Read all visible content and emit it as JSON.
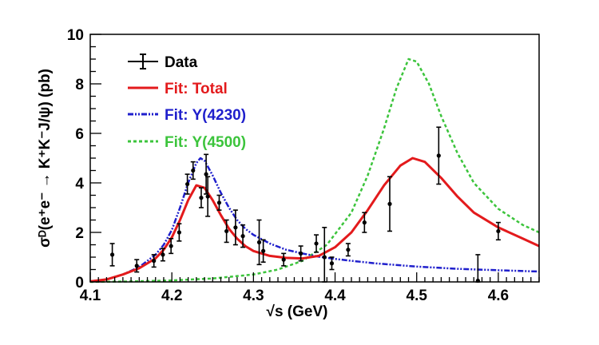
{
  "chart_data": {
    "type": "scatter",
    "title": "",
    "xlabel": "√s (GeV)",
    "ylabel": "σᴰ(e⁺e⁻ → K⁺K⁻J/ψ) (pb)",
    "xlim": [
      4.1,
      4.65
    ],
    "ylim": [
      0,
      10
    ],
    "x_ticks": [
      "4.1",
      "4.2",
      "4.3",
      "4.4",
      "4.5",
      "4.6"
    ],
    "y_ticks": [
      "0",
      "2",
      "4",
      "6",
      "8",
      "10"
    ],
    "grid": false,
    "legend_position": "top-left",
    "legend": [
      {
        "key": "data",
        "label": "Data",
        "color": "#000000"
      },
      {
        "key": "total",
        "label": "Fit: Total",
        "color": "#e31a1c"
      },
      {
        "key": "y4230",
        "label": "Fit: Y(4230)",
        "color": "#1f1fcc"
      },
      {
        "key": "y4500",
        "label": "Fit: Y(4500)",
        "color": "#3cc43c"
      }
    ],
    "data_points": [
      {
        "x": 4.127,
        "y": 1.1,
        "err": 0.45
      },
      {
        "x": 4.157,
        "y": 0.65,
        "err": 0.25
      },
      {
        "x": 4.178,
        "y": 0.85,
        "err": 0.25
      },
      {
        "x": 4.189,
        "y": 1.1,
        "err": 0.25
      },
      {
        "x": 4.199,
        "y": 1.45,
        "err": 0.3
      },
      {
        "x": 4.209,
        "y": 2.0,
        "err": 0.35
      },
      {
        "x": 4.219,
        "y": 3.95,
        "err": 0.4
      },
      {
        "x": 4.226,
        "y": 4.5,
        "err": 0.35
      },
      {
        "x": 4.236,
        "y": 3.4,
        "err": 0.4
      },
      {
        "x": 4.242,
        "y": 4.35,
        "err": 0.8
      },
      {
        "x": 4.244,
        "y": 3.45,
        "err": 0.8
      },
      {
        "x": 4.258,
        "y": 3.2,
        "err": 0.3
      },
      {
        "x": 4.267,
        "y": 2.05,
        "err": 0.45
      },
      {
        "x": 4.278,
        "y": 2.2,
        "err": 0.7
      },
      {
        "x": 4.287,
        "y": 1.85,
        "err": 0.45
      },
      {
        "x": 4.307,
        "y": 1.6,
        "err": 0.9
      },
      {
        "x": 4.312,
        "y": 1.25,
        "err": 0.45
      },
      {
        "x": 4.337,
        "y": 0.9,
        "err": 0.25
      },
      {
        "x": 4.358,
        "y": 1.15,
        "err": 0.3
      },
      {
        "x": 4.377,
        "y": 1.55,
        "err": 0.35
      },
      {
        "x": 4.387,
        "y": 1.0,
        "err": 1.2
      },
      {
        "x": 4.396,
        "y": 0.75,
        "err": 0.25
      },
      {
        "x": 4.416,
        "y": 1.3,
        "err": 0.25
      },
      {
        "x": 4.436,
        "y": 2.4,
        "err": 0.4
      },
      {
        "x": 4.467,
        "y": 3.15,
        "err": 1.1
      },
      {
        "x": 4.527,
        "y": 5.1,
        "err": 1.15
      },
      {
        "x": 4.575,
        "y": 0.05,
        "err": 1.05
      },
      {
        "x": 4.6,
        "y": 2.05,
        "err": 0.35
      }
    ],
    "curves": {
      "total": [
        [
          4.1,
          0.02
        ],
        [
          4.12,
          0.1
        ],
        [
          4.14,
          0.3
        ],
        [
          4.16,
          0.55
        ],
        [
          4.18,
          0.95
        ],
        [
          4.19,
          1.3
        ],
        [
          4.2,
          1.8
        ],
        [
          4.21,
          2.5
        ],
        [
          4.22,
          3.3
        ],
        [
          4.23,
          3.9
        ],
        [
          4.24,
          3.8
        ],
        [
          4.25,
          3.3
        ],
        [
          4.26,
          2.7
        ],
        [
          4.27,
          2.15
        ],
        [
          4.28,
          1.75
        ],
        [
          4.29,
          1.45
        ],
        [
          4.3,
          1.25
        ],
        [
          4.32,
          1.05
        ],
        [
          4.34,
          0.97
        ],
        [
          4.36,
          0.95
        ],
        [
          4.38,
          1.05
        ],
        [
          4.4,
          1.4
        ],
        [
          4.42,
          2.0
        ],
        [
          4.44,
          2.9
        ],
        [
          4.46,
          3.9
        ],
        [
          4.48,
          4.7
        ],
        [
          4.495,
          5.0
        ],
        [
          4.51,
          4.85
        ],
        [
          4.53,
          4.2
        ],
        [
          4.55,
          3.45
        ],
        [
          4.57,
          2.8
        ],
        [
          4.6,
          2.2
        ],
        [
          4.63,
          1.75
        ],
        [
          4.65,
          1.45
        ]
      ],
      "y4230": [
        [
          4.1,
          0.02
        ],
        [
          4.12,
          0.1
        ],
        [
          4.14,
          0.3
        ],
        [
          4.16,
          0.6
        ],
        [
          4.18,
          1.1
        ],
        [
          4.19,
          1.5
        ],
        [
          4.2,
          2.1
        ],
        [
          4.21,
          3.0
        ],
        [
          4.22,
          4.0
        ],
        [
          4.23,
          4.8
        ],
        [
          4.235,
          5.0
        ],
        [
          4.24,
          4.9
        ],
        [
          4.25,
          4.3
        ],
        [
          4.26,
          3.6
        ],
        [
          4.27,
          3.0
        ],
        [
          4.28,
          2.5
        ],
        [
          4.29,
          2.15
        ],
        [
          4.3,
          1.9
        ],
        [
          4.32,
          1.55
        ],
        [
          4.34,
          1.3
        ],
        [
          4.36,
          1.15
        ],
        [
          4.38,
          1.02
        ],
        [
          4.4,
          0.93
        ],
        [
          4.42,
          0.85
        ],
        [
          4.45,
          0.75
        ],
        [
          4.5,
          0.62
        ],
        [
          4.55,
          0.53
        ],
        [
          4.6,
          0.47
        ],
        [
          4.65,
          0.42
        ]
      ],
      "y4500": [
        [
          4.1,
          0.0
        ],
        [
          4.15,
          0.02
        ],
        [
          4.2,
          0.06
        ],
        [
          4.25,
          0.14
        ],
        [
          4.3,
          0.3
        ],
        [
          4.33,
          0.5
        ],
        [
          4.36,
          0.85
        ],
        [
          4.39,
          1.5
        ],
        [
          4.42,
          2.8
        ],
        [
          4.44,
          4.3
        ],
        [
          4.46,
          6.2
        ],
        [
          4.475,
          7.8
        ],
        [
          4.49,
          9.0
        ],
        [
          4.5,
          8.9
        ],
        [
          4.515,
          8.0
        ],
        [
          4.53,
          6.7
        ],
        [
          4.55,
          5.2
        ],
        [
          4.57,
          4.0
        ],
        [
          4.6,
          2.95
        ],
        [
          4.63,
          2.3
        ],
        [
          4.65,
          2.0
        ]
      ]
    }
  }
}
